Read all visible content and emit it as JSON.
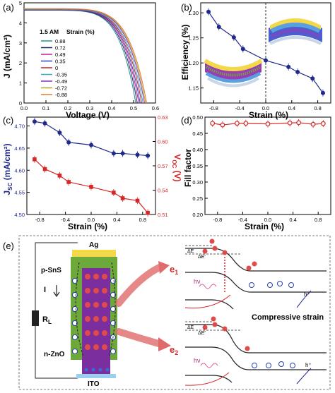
{
  "panels": {
    "a": {
      "label": "(a)",
      "xlabel": "Voltage (V)",
      "ylabel": "J (mA/cm²)",
      "legend_title": "1.5 AM",
      "legend_header": "Strain (%)"
    },
    "b": {
      "label": "(b)",
      "xlabel": "Strain (%)",
      "ylabel": "Efficiency (%)"
    },
    "c": {
      "label": "(c)",
      "xlabel": "Strain (%)",
      "ylabel_left": "J",
      "ylabel_left_sub": "SC",
      "ylabel_left_unit": " (mA/cm²)",
      "ylabel_right": "V",
      "ylabel_right_sub": "OC",
      "ylabel_right_unit": " (V)"
    },
    "d": {
      "label": "(d)",
      "xlabel": "Strain (%)",
      "ylabel": "Fill factor"
    },
    "e": {
      "label": "(e)",
      "ag": "Ag",
      "psns": "p-SnS",
      "current": "I",
      "rl": "R",
      "rl_sub": "L",
      "nzno": "n-ZnO",
      "ito": "ITO",
      "e1": "e",
      "e1_sub": "1",
      "e2": "e",
      "e2_sub": "2",
      "compressive": "Compressive strain",
      "hv": "hν",
      "hplus": "h⁺",
      "de": "ΔE",
      "deprime": "ΔE′"
    }
  },
  "colors": {
    "blue": "#1f2a8c",
    "red": "#d62728",
    "green": "#6ca83a",
    "purple": "#7b2f9e",
    "gold": "#e3c53d",
    "ito": "#9ad0ee"
  },
  "chart_data": [
    {
      "panel": "a",
      "type": "line",
      "xlim": [
        0.0,
        0.6
      ],
      "ylim": [
        0,
        5
      ],
      "xticks": [
        "0.0",
        "0.1",
        "0.2",
        "0.3",
        "0.4",
        "0.5",
        "0.6"
      ],
      "yticks": [
        "0",
        "1",
        "2",
        "3",
        "4",
        "5"
      ],
      "series": [
        {
          "name": "0.88",
          "color": "#2a8f8f",
          "jsc": 4.63,
          "voc": 0.51
        },
        {
          "name": "0.72",
          "color": "#1e2a6e",
          "jsc": 4.64,
          "voc": 0.517
        },
        {
          "name": "0.49",
          "color": "#c91f8e",
          "jsc": 4.65,
          "voc": 0.524
        },
        {
          "name": "0.35",
          "color": "#2b3fc2",
          "jsc": 4.65,
          "voc": 0.53
        },
        {
          "name": "0",
          "color": "#cc2020",
          "jsc": 4.66,
          "voc": 0.537
        },
        {
          "name": "-0.35",
          "color": "#33a9c9",
          "jsc": 4.67,
          "voc": 0.543
        },
        {
          "name": "-0.49",
          "color": "#8a2fc2",
          "jsc": 4.69,
          "voc": 0.55
        },
        {
          "name": "-0.72",
          "color": "#b4a51e",
          "jsc": 4.7,
          "voc": 0.555
        },
        {
          "name": "-0.88",
          "color": "#e07a3a",
          "jsc": 4.71,
          "voc": 0.56
        }
      ]
    },
    {
      "panel": "b",
      "type": "line",
      "xlim": [
        -1.0,
        1.0
      ],
      "ylim": [
        1.12,
        1.32
      ],
      "xticks": [
        "-0.8",
        "-0.4",
        "0.0",
        "0.4",
        "0.8"
      ],
      "yticks": [
        "1.15",
        "1.20",
        "1.25",
        "1.30"
      ],
      "x": [
        -0.88,
        -0.72,
        -0.49,
        -0.35,
        0,
        0.35,
        0.49,
        0.72,
        0.88
      ],
      "series": [
        {
          "values": [
            1.302,
            1.272,
            1.251,
            1.228,
            1.205,
            1.192,
            1.182,
            1.169,
            1.14
          ]
        }
      ]
    },
    {
      "panel": "c",
      "type": "line",
      "xlim": [
        -1.0,
        1.0
      ],
      "ylim_left": [
        4.5,
        4.72
      ],
      "ylim_right": [
        0.51,
        0.63
      ],
      "xticks": [
        "-0.8",
        "-0.4",
        "0.0",
        "0.4",
        "0.8"
      ],
      "yticks_left": [
        "4.50",
        "4.55",
        "4.60",
        "4.65",
        "4.70"
      ],
      "yticks_right": [
        "0.51",
        "0.54",
        "0.57",
        "0.60",
        "0.63"
      ],
      "x": [
        -0.88,
        -0.72,
        -0.49,
        -0.35,
        0,
        0.35,
        0.49,
        0.72,
        0.88
      ],
      "series": [
        {
          "axis": "left",
          "values": [
            4.71,
            4.706,
            4.685,
            4.663,
            4.657,
            4.638,
            4.638,
            4.635,
            4.633
          ]
        },
        {
          "axis": "right",
          "values": [
            0.578,
            0.566,
            0.558,
            0.55,
            0.544,
            0.537,
            0.53,
            0.527,
            0.512
          ]
        }
      ]
    },
    {
      "panel": "d",
      "type": "line",
      "xlim": [
        -1.0,
        1.0
      ],
      "ylim": [
        0.2,
        0.5
      ],
      "xticks": [
        "-0.8",
        "-0.4",
        "0.0",
        "0.4",
        "0.8"
      ],
      "yticks": [
        "0.20",
        "0.25",
        "0.30",
        "0.35",
        "0.40",
        "0.45",
        "0.50"
      ],
      "x": [
        -0.88,
        -0.72,
        -0.49,
        -0.35,
        0,
        0.35,
        0.49,
        0.72,
        0.88
      ],
      "series": [
        {
          "values": [
            0.481,
            0.476,
            0.481,
            0.481,
            0.479,
            0.482,
            0.483,
            0.478,
            0.48
          ]
        }
      ]
    }
  ]
}
